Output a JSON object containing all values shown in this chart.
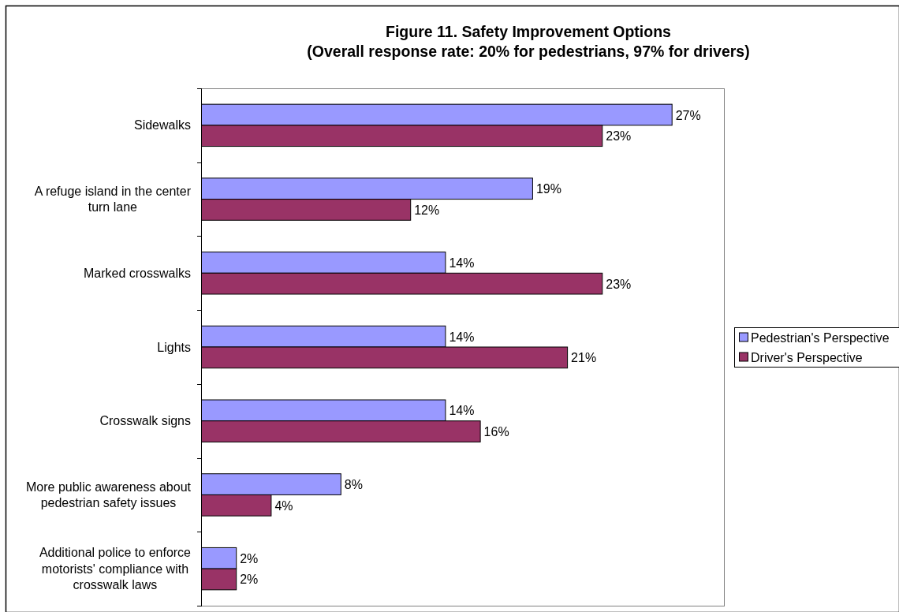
{
  "chart_data": {
    "type": "bar",
    "orientation": "horizontal",
    "title": "Figure 11. Safety Improvement Options",
    "subtitle": "(Overall response rate: 20% for pedestrians, 97% for drivers)",
    "categories": [
      "Sidewalks",
      "A refuge island in the center turn lane",
      "Marked crosswalks",
      "Lights",
      "Crosswalk signs",
      "More public awareness about pedestrian safety issues",
      "Additional police to enforce motorists' compliance with crosswalk laws"
    ],
    "series": [
      {
        "name": "Pedestrian's Perspective",
        "color": "#9999ff",
        "values": [
          27,
          19,
          14,
          14,
          14,
          8,
          2
        ],
        "value_labels": [
          "27%",
          "19%",
          "14%",
          "14%",
          "14%",
          "8%",
          "2%"
        ]
      },
      {
        "name": "Driver's Perspective",
        "color": "#993366",
        "values": [
          23,
          12,
          23,
          21,
          16,
          4,
          2
        ],
        "value_labels": [
          "23%",
          "12%",
          "23%",
          "21%",
          "16%",
          "4%",
          "2%"
        ]
      }
    ],
    "xlim": [
      0,
      30
    ],
    "tick_labels": "y",
    "legend": "right"
  }
}
